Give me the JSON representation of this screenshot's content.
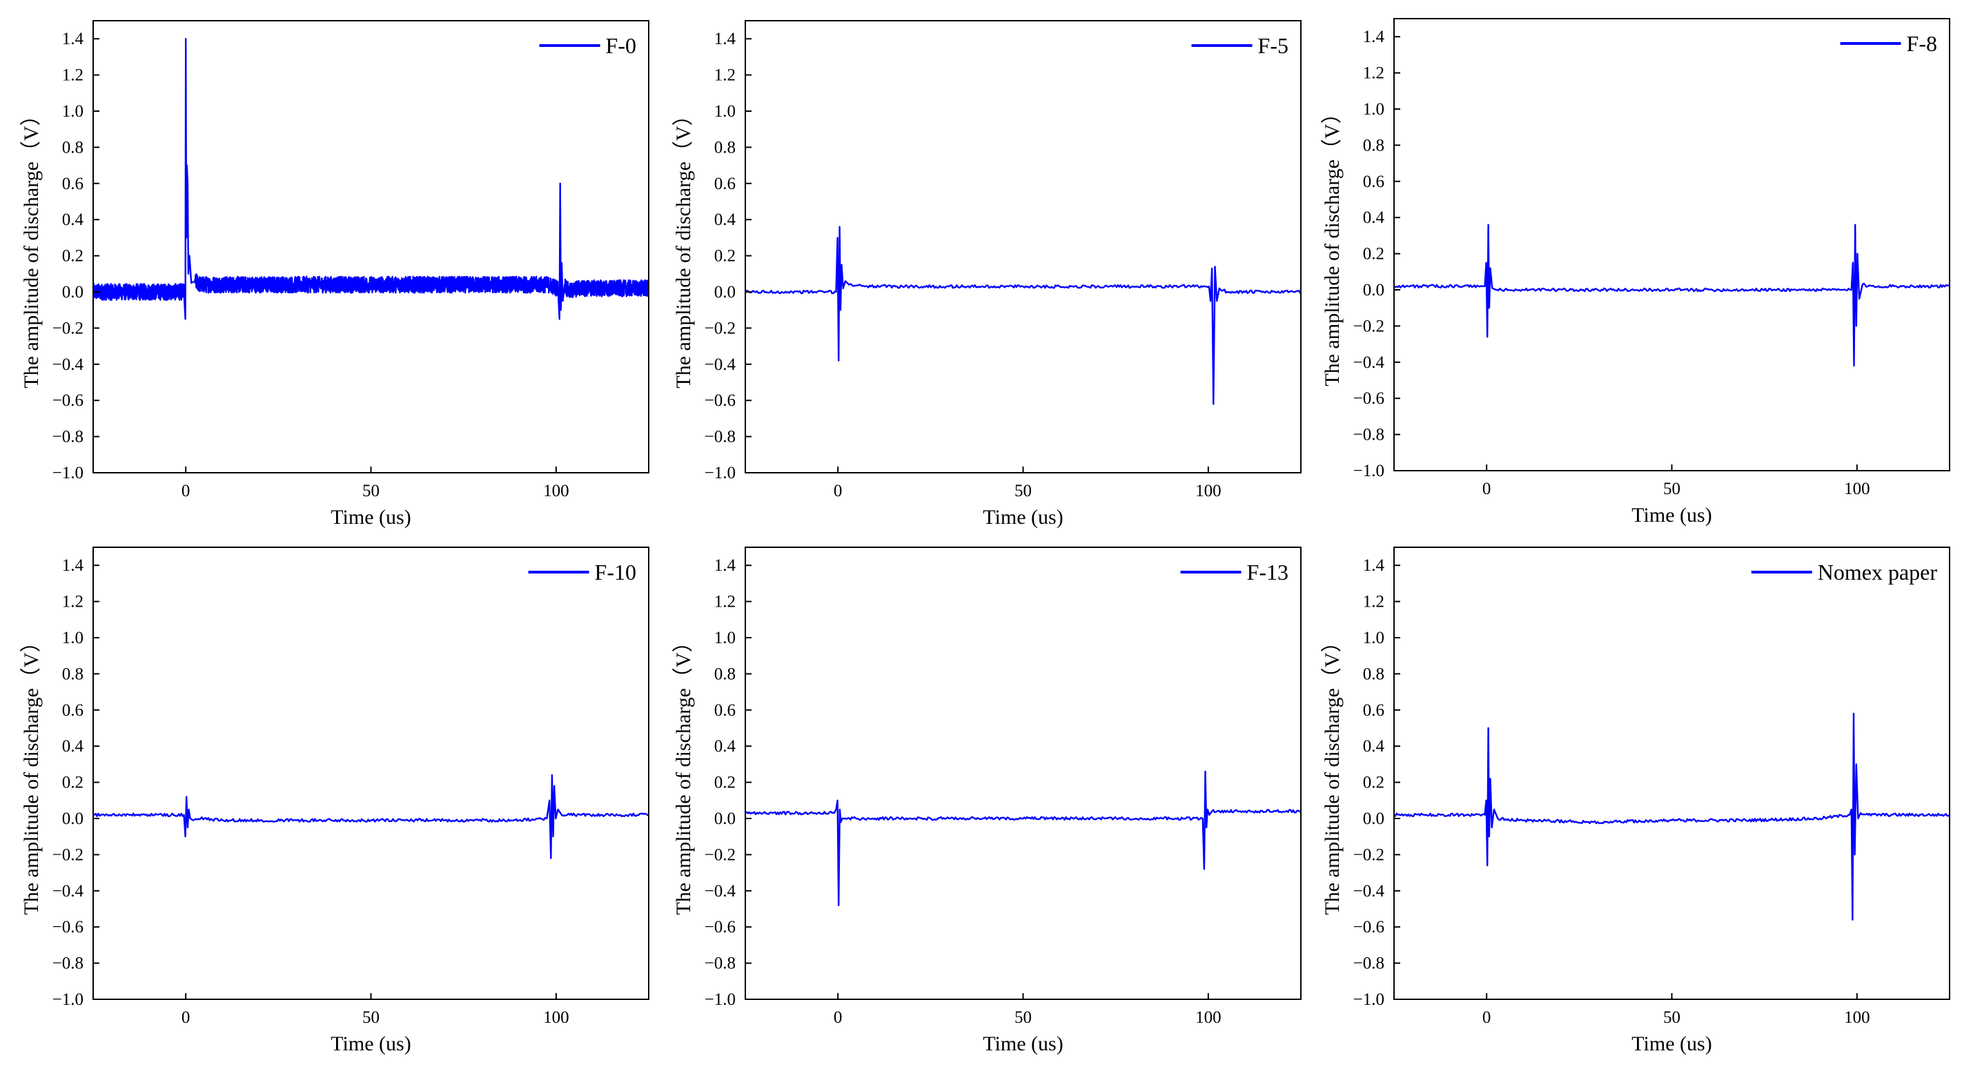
{
  "chart_data": [
    {
      "type": "line",
      "series": [
        {
          "name": "F-0",
          "color": "#0000ff",
          "noise": 0.045,
          "noise_step": 0.04,
          "baseline": 0.0,
          "x": [
            -25,
            -0.5,
            -0.1,
            0.0,
            0.15,
            0.3,
            0.5,
            0.7,
            1.0,
            1.5,
            2.5,
            4,
            20,
            40,
            60,
            80,
            98,
            100.5,
            100.9,
            101.1,
            101.3,
            101.5,
            101.8,
            102.3,
            103.5,
            106,
            115,
            125
          ],
          "y": [
            0.0,
            0.0,
            -0.15,
            1.4,
            0.3,
            0.7,
            0.6,
            0.1,
            0.2,
            0.05,
            0.06,
            0.04,
            0.04,
            0.04,
            0.04,
            0.04,
            0.04,
            0.02,
            -0.15,
            0.6,
            -0.1,
            0.16,
            -0.05,
            0.04,
            0.0,
            0.02,
            0.02,
            0.02
          ]
        }
      ],
      "xlim": [
        -25,
        125
      ],
      "ylim": [
        -1.0,
        1.5
      ],
      "xticks": [
        0,
        50,
        100
      ],
      "yticks": [
        -1.0,
        -0.8,
        -0.6,
        -0.4,
        -0.2,
        0.0,
        0.2,
        0.4,
        0.6,
        0.8,
        1.0,
        1.2,
        1.4
      ],
      "xlabel": "Time (us)",
      "ylabel": "The amplitude of discharge（V）",
      "legend": "top-right"
    },
    {
      "type": "line",
      "series": [
        {
          "name": "F-5",
          "color": "#0000ff",
          "noise": 0.008,
          "noise_step": 0.35,
          "baseline": 0.0,
          "x": [
            -25,
            -0.5,
            -0.1,
            0.2,
            0.45,
            0.7,
            1.0,
            1.4,
            2.0,
            3,
            10,
            30,
            50,
            70,
            90,
            100.2,
            100.6,
            101.0,
            101.4,
            101.8,
            102.3,
            103,
            105,
            115,
            125
          ],
          "y": [
            0.0,
            0.0,
            0.3,
            -0.38,
            0.36,
            -0.1,
            0.15,
            0.02,
            0.06,
            0.04,
            0.03,
            0.03,
            0.03,
            0.03,
            0.03,
            0.03,
            -0.05,
            0.13,
            -0.62,
            0.14,
            -0.05,
            0.02,
            0.0,
            0.0,
            0.0
          ]
        }
      ],
      "xlim": [
        -25,
        125
      ],
      "ylim": [
        -1.0,
        1.5
      ],
      "xticks": [
        0,
        50,
        100
      ],
      "yticks": [
        -1.0,
        -0.8,
        -0.6,
        -0.4,
        -0.2,
        0.0,
        0.2,
        0.4,
        0.6,
        0.8,
        1.0,
        1.2,
        1.4
      ],
      "xlabel": "Time (us)",
      "ylabel": "The amplitude of discharge（V）",
      "legend": "top-right"
    },
    {
      "type": "line",
      "series": [
        {
          "name": "F-8",
          "color": "#0000ff",
          "noise": 0.008,
          "noise_step": 0.35,
          "baseline": 0.0,
          "x": [
            -25,
            -0.5,
            -0.1,
            0.2,
            0.45,
            0.7,
            1.0,
            1.5,
            2.5,
            10,
            30,
            50,
            70,
            90,
            98.5,
            98.9,
            99.2,
            99.5,
            99.8,
            100.1,
            100.6,
            101.5,
            103,
            125
          ],
          "y": [
            0.02,
            0.02,
            0.15,
            -0.26,
            0.36,
            -0.1,
            0.12,
            0.01,
            0.0,
            0.0,
            0.0,
            0.0,
            0.0,
            0.0,
            0.0,
            0.15,
            -0.42,
            0.36,
            -0.2,
            0.2,
            -0.05,
            0.03,
            0.02,
            0.02
          ]
        }
      ],
      "xlim": [
        -25,
        125
      ],
      "ylim": [
        -1.0,
        1.5
      ],
      "xticks": [
        0,
        50,
        100
      ],
      "yticks": [
        -1.0,
        -0.8,
        -0.6,
        -0.4,
        -0.2,
        0.0,
        0.2,
        0.4,
        0.6,
        0.8,
        1.0,
        1.2,
        1.4
      ],
      "xlabel": "Time (us)",
      "ylabel": "The amplitude of discharge（V）",
      "legend": "top-right"
    },
    {
      "type": "line",
      "series": [
        {
          "name": "F-10",
          "color": "#0000ff",
          "noise": 0.008,
          "noise_step": 0.35,
          "baseline": 0.0,
          "x": [
            -25,
            -0.5,
            -0.1,
            0.2,
            0.5,
            0.8,
            1.2,
            2,
            4,
            10,
            30,
            50,
            70,
            90,
            97.5,
            98.2,
            98.6,
            98.9,
            99.2,
            99.5,
            99.9,
            100.5,
            101.5,
            103,
            125
          ],
          "y": [
            0.02,
            0.02,
            -0.1,
            0.12,
            -0.05,
            0.05,
            0.0,
            -0.01,
            0.0,
            -0.01,
            -0.01,
            -0.01,
            -0.01,
            -0.01,
            0.0,
            0.1,
            -0.22,
            0.24,
            -0.1,
            0.18,
            0.0,
            0.05,
            0.02,
            0.02,
            0.02
          ]
        }
      ],
      "xlim": [
        -25,
        125
      ],
      "ylim": [
        -1.0,
        1.5
      ],
      "xticks": [
        0,
        50,
        100
      ],
      "yticks": [
        -1.0,
        -0.8,
        -0.6,
        -0.4,
        -0.2,
        0.0,
        0.2,
        0.4,
        0.6,
        0.8,
        1.0,
        1.2,
        1.4
      ],
      "xlabel": "Time (us)",
      "ylabel": "The amplitude of discharge（V）",
      "legend": "top-right"
    },
    {
      "type": "line",
      "series": [
        {
          "name": "F-13",
          "color": "#0000ff",
          "noise": 0.008,
          "noise_step": 0.35,
          "baseline": 0.0,
          "x": [
            -25,
            -1.0,
            -0.5,
            -0.1,
            0.2,
            0.5,
            0.8,
            1.2,
            2,
            10,
            30,
            50,
            70,
            90,
            98.5,
            98.9,
            99.2,
            99.5,
            99.8,
            100.3,
            101,
            103,
            125
          ],
          "y": [
            0.03,
            0.03,
            0.05,
            0.1,
            -0.48,
            0.05,
            -0.02,
            0.0,
            0.0,
            0.0,
            0.0,
            0.0,
            0.0,
            0.0,
            0.0,
            -0.28,
            0.26,
            -0.05,
            0.05,
            0.02,
            0.04,
            0.04,
            0.04
          ]
        }
      ],
      "xlim": [
        -25,
        125
      ],
      "ylim": [
        -1.0,
        1.5
      ],
      "xticks": [
        0,
        50,
        100
      ],
      "yticks": [
        -1.0,
        -0.8,
        -0.6,
        -0.4,
        -0.2,
        0.0,
        0.2,
        0.4,
        0.6,
        0.8,
        1.0,
        1.2,
        1.4
      ],
      "xlabel": "Time (us)",
      "ylabel": "The amplitude of discharge（V）",
      "legend": "top-right"
    },
    {
      "type": "line",
      "series": [
        {
          "name": "Nomex paper",
          "color": "#0000ff",
          "noise": 0.008,
          "noise_step": 0.35,
          "baseline": 0.0,
          "x": [
            -25,
            -0.5,
            -0.1,
            0.2,
            0.45,
            0.7,
            1.0,
            1.4,
            2.0,
            3,
            10,
            30,
            50,
            70,
            90,
            98.0,
            98.5,
            98.8,
            99.1,
            99.4,
            99.8,
            100.3,
            101,
            103,
            125
          ],
          "y": [
            0.02,
            0.02,
            0.1,
            -0.26,
            0.5,
            -0.1,
            0.22,
            -0.05,
            0.05,
            0.0,
            -0.01,
            -0.02,
            -0.01,
            -0.01,
            0.0,
            0.02,
            0.05,
            -0.56,
            0.58,
            -0.2,
            0.3,
            0.0,
            0.03,
            0.02,
            0.02
          ]
        }
      ],
      "xlim": [
        -25,
        125
      ],
      "ylim": [
        -1.0,
        1.5
      ],
      "xticks": [
        0,
        50,
        100
      ],
      "yticks": [
        -1.0,
        -0.8,
        -0.6,
        -0.4,
        -0.2,
        0.0,
        0.2,
        0.4,
        0.6,
        0.8,
        1.0,
        1.2,
        1.4
      ],
      "xlabel": "Time (us)",
      "ylabel": "The amplitude of discharge（V）",
      "legend": "top-right"
    }
  ]
}
